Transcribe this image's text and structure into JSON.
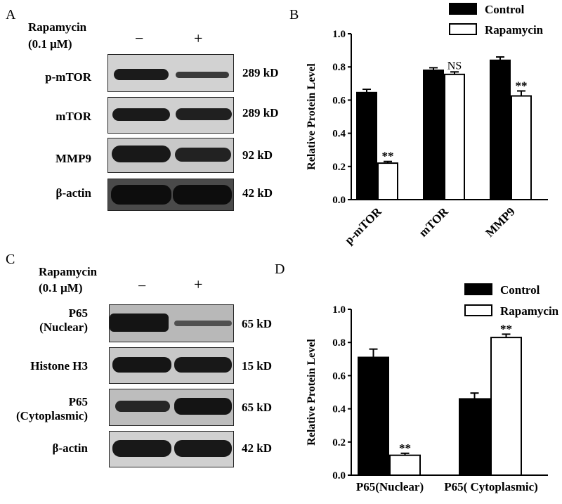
{
  "panels": {
    "A": {
      "letter": "A",
      "treatment": {
        "name": "Rapamycin",
        "dose": "(0.1 μM)"
      },
      "lanes": [
        "−",
        "+"
      ],
      "rows": [
        {
          "label": "p-mTOR",
          "kd": "289 kD"
        },
        {
          "label": "mTOR",
          "kd": "289 kD"
        },
        {
          "label": "MMP9",
          "kd": "92 kD"
        },
        {
          "label": "β-actin",
          "kd": "42 kD"
        }
      ]
    },
    "B": {
      "letter": "B"
    },
    "C": {
      "letter": "C",
      "treatment": {
        "name": "Rapamycin",
        "dose": "(0.1 μM)"
      },
      "lanes": [
        "−",
        "+"
      ],
      "rows": [
        {
          "label": "P65",
          "label2": "(Nuclear)",
          "kd": "65 kD"
        },
        {
          "label": "Histone H3",
          "kd": "15 kD"
        },
        {
          "label": "P65",
          "label2": "(Cytoplasmic)",
          "kd": "65 kD"
        },
        {
          "label": "β-actin",
          "kd": "42 kD"
        }
      ]
    },
    "D": {
      "letter": "D"
    }
  },
  "chart_data": [
    {
      "type": "bar",
      "panel": "B",
      "ylabel": "Relative Protein  Level",
      "ylim": [
        0,
        1.0
      ],
      "yticks": [
        "0.0",
        "0.2",
        "0.4",
        "0.6",
        "0.8",
        "1.0"
      ],
      "categories": [
        "p-mTOR",
        "mTOR",
        "MMP9"
      ],
      "series": [
        {
          "name": "Control",
          "color": "#000000",
          "values": [
            0.645,
            0.78,
            0.84
          ],
          "errors": [
            0.02,
            0.015,
            0.02
          ]
        },
        {
          "name": "Rapamycin",
          "color": "#ffffff",
          "values": [
            0.22,
            0.755,
            0.625
          ],
          "errors": [
            0.01,
            0.015,
            0.03
          ]
        }
      ],
      "annotations": [
        "**",
        "NS",
        "**"
      ],
      "legend": "top-right"
    },
    {
      "type": "bar",
      "panel": "D",
      "ylabel": "Relative Protein  Level",
      "ylim": [
        0,
        1.0
      ],
      "yticks": [
        "0.0",
        "0.2",
        "0.4",
        "0.6",
        "0.8",
        "1.0"
      ],
      "categories": [
        "P65(Nuclear)",
        "P65( Cytoplasmic)"
      ],
      "series": [
        {
          "name": "Control",
          "color": "#000000",
          "values": [
            0.71,
            0.46
          ],
          "errors": [
            0.05,
            0.035
          ]
        },
        {
          "name": "Rapamycin",
          "color": "#ffffff",
          "values": [
            0.12,
            0.83
          ],
          "errors": [
            0.012,
            0.02
          ]
        }
      ],
      "annotations": [
        "**",
        "**"
      ],
      "legend": "top-right"
    }
  ]
}
